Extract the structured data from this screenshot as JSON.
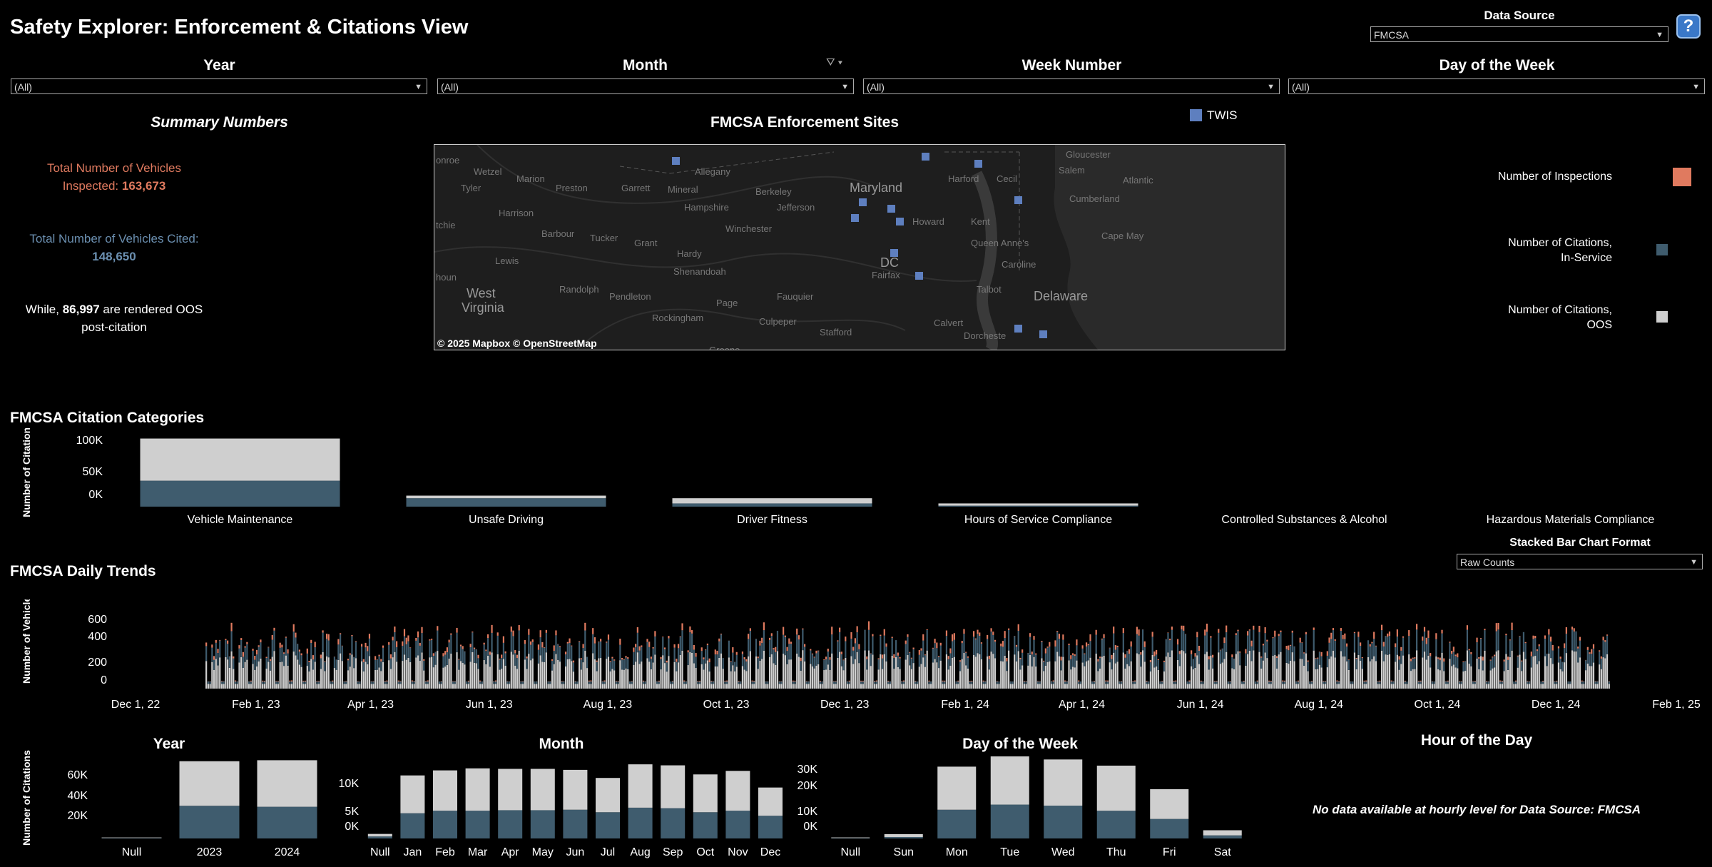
{
  "title": "Safety Explorer: Enforcement & Citations View",
  "data_source": {
    "label": "Data Source",
    "value": "FMCSA"
  },
  "help_glyph": "?",
  "filters": [
    {
      "label": "Year",
      "value": "(All)"
    },
    {
      "label": "Month",
      "value": "(All)"
    },
    {
      "label": "Week Number",
      "value": "(All)"
    },
    {
      "label": "Day of the Week",
      "value": "(All)"
    }
  ],
  "summary": {
    "title": "Summary Numbers",
    "inspected_line1": "Total Number of Vehicles",
    "inspected_prefix": "Inspected: ",
    "inspected_value": "163,673",
    "cited_line1": "Total Number of Vehicles Cited:",
    "cited_value": "148,650",
    "oos_prefix": "While, ",
    "oos_value": "86,997",
    "oos_suffix": " are rendered OOS",
    "oos_line2": "post-citation"
  },
  "map": {
    "title": "FMCSA Enforcement Sites",
    "legend": "TWIS",
    "attribution": "© 2025 Mapbox  © OpenStreetMap",
    "places": [
      "onroe",
      "Wetzel",
      "Marion",
      "Tyler",
      "Preston",
      "Garrett",
      "Mineral",
      "Allegany",
      "Hampshire",
      "Berkeley",
      "Jefferson",
      "Harrison",
      "Barbour",
      "Tucker",
      "Grant",
      "Winchester",
      "Hardy",
      "Shenandoah",
      "Lewis",
      "Randolph",
      "Pendleton",
      "Page",
      "Rockingham",
      "Fauquier",
      "Culpeper",
      "Stafford",
      "Greene",
      "houn",
      "tchie",
      "Harford",
      "Cecil",
      "Kent",
      "Howard",
      "Fairfax",
      "Calvert",
      "Talbot",
      "Caroline",
      "Queen Anne's",
      "Dorcheste",
      "Gloucester",
      "Salem",
      "Cumberland",
      "Atlantic",
      "Cape May"
    ],
    "big_places": [
      "Maryland",
      "DC",
      "West",
      "Virginia",
      "Delaware"
    ]
  },
  "legend": {
    "inspections": "Number of Inspections",
    "citations_in_service_1": "Number of Citations,",
    "citations_in_service_2": "In-Service",
    "citations_oos_1": "Number of Citations,",
    "citations_oos_2": "OOS"
  },
  "colors": {
    "inspections": "#e07a5f",
    "in_service": "#3f5c6e",
    "oos": "#cfcfcf",
    "site": "#5e7fbf",
    "oos_text": "#e07a5f",
    "cited_text": "#6b8fb0"
  },
  "categories_title": "FMCSA Citation Categories",
  "trends_title": "FMCSA Daily Trends",
  "stacked_format": {
    "label": "Stacked Bar Chart Format",
    "value": "Raw Counts"
  },
  "hour_of_day": {
    "title": "Hour of the Day",
    "message": "No data available at hourly level for Data Source: FMCSA"
  },
  "chart_data": [
    {
      "id": "categories",
      "type": "bar",
      "title": "FMCSA Citation Categories",
      "ylabel": "Number of Citations",
      "yticks": [
        "100K",
        "50K",
        "0K"
      ],
      "ylim": [
        0,
        110000
      ],
      "categories": [
        "Vehicle Maintenance",
        "Unsafe Driving",
        "Driver Fitness",
        "Hours of Service Compliance",
        "Controlled Substances & Alcohol",
        "Hazardous Materials Compliance"
      ],
      "series": [
        {
          "name": "Number of Citations, In-Service",
          "values": [
            40000,
            13000,
            5000,
            1500,
            0,
            0
          ]
        },
        {
          "name": "Number of Citations, OOS",
          "values": [
            65000,
            4000,
            8000,
            3500,
            0,
            0
          ]
        }
      ]
    },
    {
      "id": "daily",
      "type": "bar",
      "title": "FMCSA Daily Trends",
      "ylabel": "Number of Vehicles",
      "yticks": [
        "600",
        "400",
        "200",
        "0"
      ],
      "xticks": [
        "Dec 1, 22",
        "Feb 1, 23",
        "Apr 1, 23",
        "Jun 1, 23",
        "Aug 1, 23",
        "Oct 1, 23",
        "Dec 1, 23",
        "Feb 1, 24",
        "Apr 1, 24",
        "Jun 1, 24",
        "Aug 1, 24",
        "Oct 1, 24",
        "Dec 1, 24",
        "Feb 1, 25"
      ],
      "x_range": [
        "2022-12-01",
        "2025-02-01"
      ],
      "data_range": [
        "2023-01-06",
        "2024-12-28"
      ],
      "typical": {
        "oos": 260,
        "in_service": 140,
        "inspections": 60
      },
      "max": 600
    },
    {
      "id": "year",
      "type": "bar",
      "title": "Year",
      "ylabel": "Number of Citations",
      "yticks": [
        "60K",
        "40K",
        "20K"
      ],
      "ylim": [
        0,
        80000
      ],
      "categories": [
        "Null",
        "2023",
        "2024"
      ],
      "series": [
        {
          "name": "Number of Citations, In-Service",
          "values": [
            500,
            33000,
            32000
          ]
        },
        {
          "name": "Number of Citations, OOS",
          "values": [
            500,
            45000,
            47000
          ]
        }
      ]
    },
    {
      "id": "month",
      "type": "bar",
      "title": "Month",
      "yticks": [
        "10K",
        "5K",
        "0K"
      ],
      "ylim": [
        0,
        15000
      ],
      "categories": [
        "Null",
        "Jan",
        "Feb",
        "Mar",
        "Apr",
        "May",
        "Jun",
        "Jul",
        "Aug",
        "Sep",
        "Oct",
        "Nov",
        "Dec"
      ],
      "series": [
        {
          "name": "Number of Citations, In-Service",
          "values": [
            400,
            5000,
            5500,
            5500,
            5600,
            5600,
            5700,
            5200,
            6100,
            6000,
            5200,
            5500,
            4500
          ]
        },
        {
          "name": "Number of Citations, OOS",
          "values": [
            500,
            7500,
            8000,
            8400,
            8200,
            8200,
            7900,
            6800,
            8600,
            8500,
            7500,
            7900,
            5600
          ]
        }
      ]
    },
    {
      "id": "dow",
      "type": "bar",
      "title": "Day of the Week",
      "yticks": [
        "30K",
        "20K",
        "10K",
        "0K"
      ],
      "ylim": [
        0,
        40000
      ],
      "categories": [
        "Null",
        "Sun",
        "Mon",
        "Tue",
        "Wed",
        "Thu",
        "Fri",
        "Sat"
      ],
      "series": [
        {
          "name": "Number of Citations, In-Service",
          "values": [
            200,
            700,
            14000,
            16500,
            16000,
            13500,
            9500,
            1500
          ]
        },
        {
          "name": "Number of Citations, OOS",
          "values": [
            300,
            1400,
            21000,
            23500,
            22500,
            22000,
            14500,
            2500
          ]
        }
      ]
    }
  ]
}
